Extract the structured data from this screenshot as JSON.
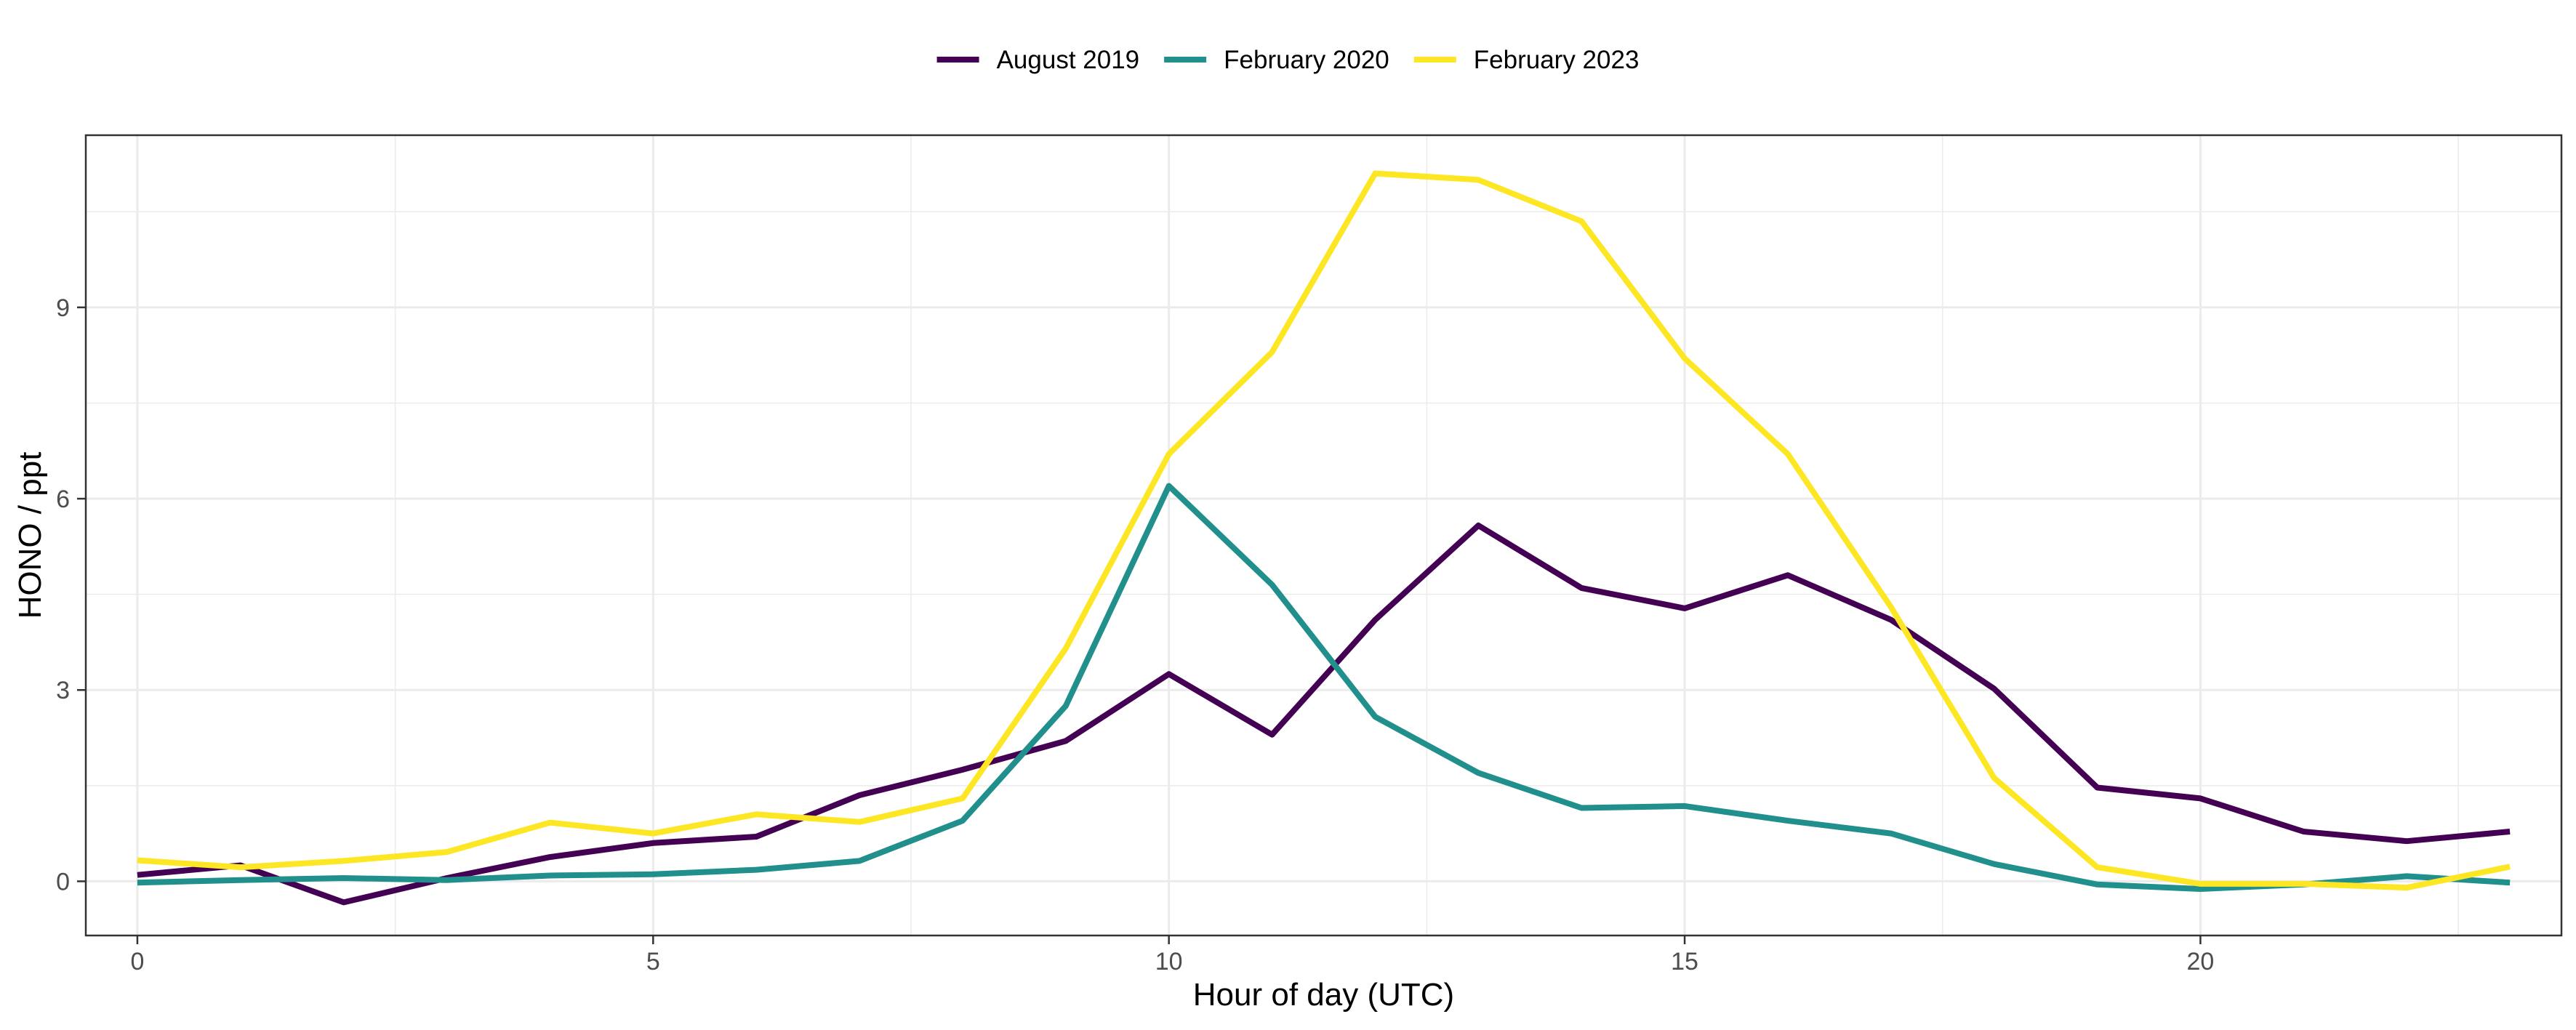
{
  "chart_data": {
    "type": "line",
    "title": "",
    "xlabel": "Hour of day (UTC)",
    "ylabel": "HONO / ppt",
    "xlim": [
      -0.5,
      23.5
    ],
    "ylim": [
      -0.85,
      11.7
    ],
    "x_ticks": [
      0,
      5,
      10,
      15,
      20
    ],
    "x_minor_ticks": [
      2.5,
      7.5,
      12.5,
      17.5,
      22.5
    ],
    "y_ticks": [
      0,
      3,
      6,
      9
    ],
    "y_minor_ticks": [
      1.5,
      4.5,
      7.5,
      10.5
    ],
    "grid": true,
    "legend_position": "top",
    "x": [
      0,
      1,
      2,
      3,
      4,
      5,
      6,
      7,
      8,
      9,
      10,
      11,
      12,
      13,
      14,
      15,
      16,
      17,
      18,
      19,
      20,
      21,
      22,
      23
    ],
    "series": [
      {
        "name": "August 2019",
        "color": "#440154",
        "values": [
          0.1,
          0.25,
          -0.33,
          0.05,
          0.38,
          0.6,
          0.7,
          1.35,
          1.75,
          2.2,
          3.25,
          2.3,
          4.1,
          5.58,
          4.6,
          4.28,
          4.8,
          4.1,
          3.02,
          1.47,
          1.3,
          0.78,
          0.63,
          0.78
        ]
      },
      {
        "name": "February 2020",
        "color": "#21908C",
        "values": [
          -0.02,
          0.02,
          0.05,
          0.02,
          0.09,
          0.11,
          0.18,
          0.32,
          0.95,
          2.75,
          6.2,
          4.65,
          2.58,
          1.7,
          1.15,
          1.18,
          0.95,
          0.75,
          0.27,
          -0.05,
          -0.12,
          -0.05,
          0.08,
          -0.02
        ]
      },
      {
        "name": "February 2023",
        "color": "#FDE725",
        "values": [
          0.33,
          0.22,
          0.32,
          0.46,
          0.92,
          0.75,
          1.05,
          0.93,
          1.3,
          3.65,
          6.7,
          8.3,
          11.1,
          11.0,
          10.35,
          8.2,
          6.7,
          4.3,
          1.62,
          0.22,
          -0.04,
          -0.04,
          -0.1,
          0.23
        ]
      }
    ]
  }
}
